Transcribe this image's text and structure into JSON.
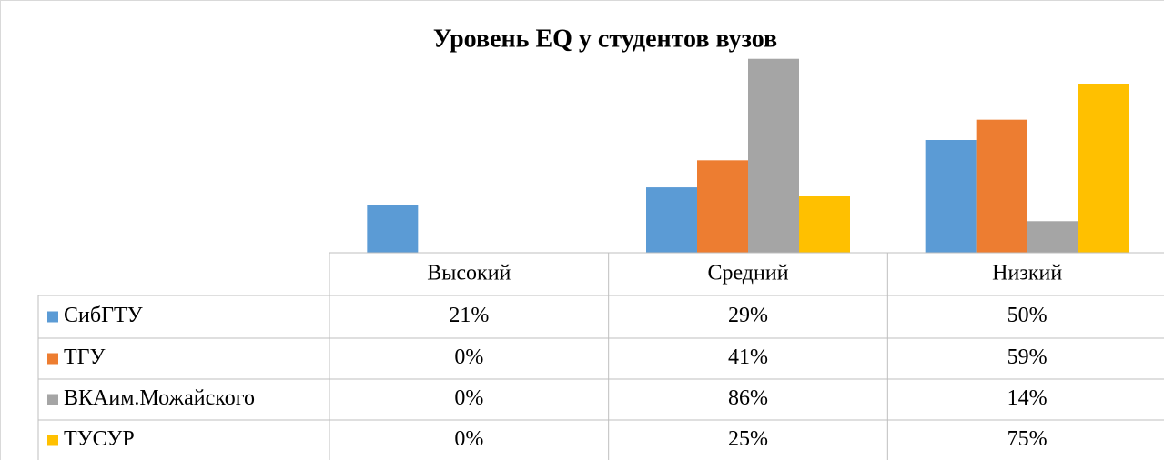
{
  "chart_data": {
    "type": "bar",
    "title": "Уровень EQ у студентов вузов",
    "categories": [
      "Высокий",
      "Средний",
      "Низкий"
    ],
    "series": [
      {
        "name": "СибГТУ",
        "color": "#5b9bd5",
        "values": [
          21,
          29,
          50
        ],
        "value_labels": [
          "21%",
          "29%",
          "50%"
        ]
      },
      {
        "name": "ТГУ",
        "color": "#ed7d31",
        "values": [
          0,
          41,
          59
        ],
        "value_labels": [
          "0%",
          "41%",
          "59%"
        ]
      },
      {
        "name": "ВКАим.Можайского",
        "color": "#a5a5a5",
        "values": [
          0,
          86,
          14
        ],
        "value_labels": [
          "0%",
          "86%",
          "14%"
        ]
      },
      {
        "name": "ТУСУР",
        "color": "#ffc000",
        "values": [
          0,
          25,
          75
        ],
        "value_labels": [
          "0%",
          "25%",
          "75%"
        ]
      }
    ],
    "data_table": true
  }
}
